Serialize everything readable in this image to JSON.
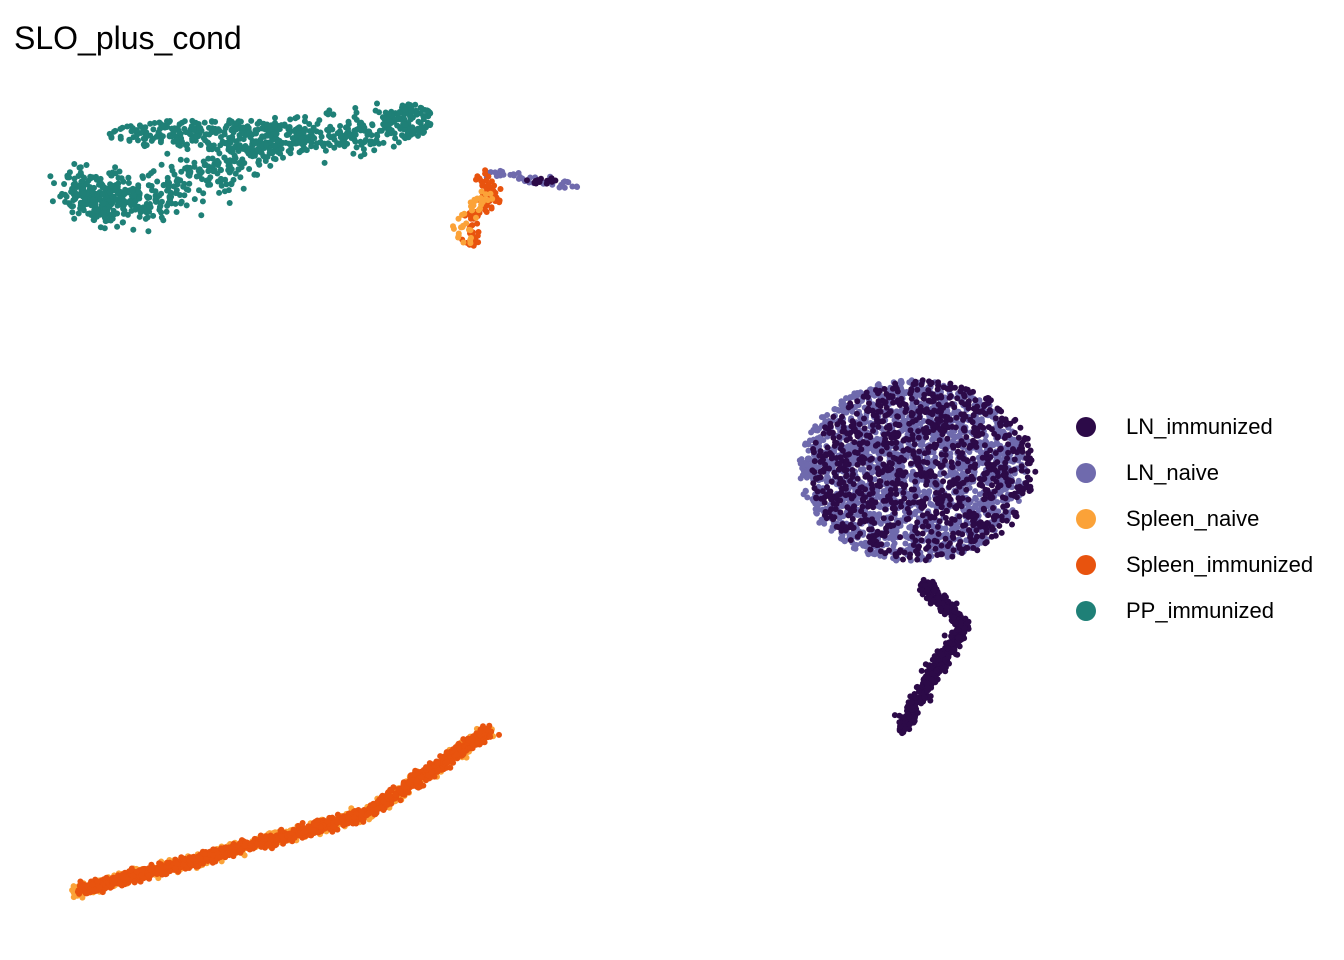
{
  "chart_data": {
    "type": "scatter",
    "title": "SLO_plus_cond",
    "xlabel": "",
    "ylabel": "",
    "axes_visible": false,
    "legend_position": "right",
    "series": [
      {
        "name": "LN_immunized",
        "color": "#2c0a48"
      },
      {
        "name": "LN_naive",
        "color": "#6f6aad"
      },
      {
        "name": "Spleen_naive",
        "color": "#fba238"
      },
      {
        "name": "Spleen_immunized",
        "color": "#e8530e"
      },
      {
        "name": "PP_immunized",
        "color": "#1f8077"
      }
    ],
    "clusters": [
      {
        "series": "PP_immunized",
        "shape": "arc",
        "path": [
          [
            0.1,
            0.7
          ],
          [
            0.2,
            0.6
          ],
          [
            0.5,
            0.5
          ],
          [
            1.2,
            0.9
          ],
          [
            2.0,
            1.4
          ],
          [
            3.0,
            1.6
          ]
        ],
        "count": 700
      },
      {
        "series": "PP_immunized",
        "shape": "blob",
        "cx": 1.3,
        "cy": 1.5,
        "rx": 1.0,
        "ry": 0.22,
        "count": 300
      },
      {
        "series": "PP_immunized",
        "shape": "blob",
        "cx": 3.2,
        "cy": 1.7,
        "rx": 0.25,
        "ry": 0.25,
        "count": 120
      },
      {
        "series": "LN_naive",
        "shape": "arc",
        "path": [
          [
            3.9,
            1.0
          ],
          [
            4.4,
            0.85
          ],
          [
            4.8,
            0.8
          ]
        ],
        "count": 40
      },
      {
        "series": "LN_immunized",
        "shape": "blob",
        "cx": 4.5,
        "cy": 0.85,
        "rx": 0.15,
        "ry": 0.05,
        "count": 15
      },
      {
        "series": "Spleen_immunized",
        "shape": "arc",
        "path": [
          [
            3.9,
            0.95
          ],
          [
            4.05,
            0.6
          ],
          [
            3.8,
            0.3
          ],
          [
            3.85,
            -0.1
          ]
        ],
        "count": 80
      },
      {
        "series": "Spleen_naive",
        "shape": "arc",
        "path": [
          [
            4.0,
            0.7
          ],
          [
            3.7,
            0.25
          ],
          [
            3.8,
            -0.05
          ]
        ],
        "count": 40
      },
      {
        "series": "LN_naive",
        "shape": "blob",
        "cx": 8.1,
        "cy": -3.3,
        "rx": 1.1,
        "ry": 1.3,
        "count": 1800
      },
      {
        "series": "LN_immunized",
        "shape": "blob",
        "cx": 8.2,
        "cy": -3.3,
        "rx": 1.1,
        "ry": 1.3,
        "count": 1000
      },
      {
        "series": "LN_immunized",
        "shape": "arc",
        "path": [
          [
            8.2,
            -4.9
          ],
          [
            8.6,
            -5.5
          ],
          [
            8.3,
            -6.2
          ],
          [
            8.0,
            -7.0
          ]
        ],
        "count": 520
      },
      {
        "series": "Spleen_naive",
        "shape": "arc",
        "path": [
          [
            0.0,
            -9.3
          ],
          [
            1.3,
            -8.8
          ],
          [
            2.8,
            -8.2
          ],
          [
            4.0,
            -7.0
          ]
        ],
        "count": 900
      },
      {
        "series": "Spleen_immunized",
        "shape": "arc",
        "path": [
          [
            0.0,
            -9.3
          ],
          [
            1.3,
            -8.8
          ],
          [
            2.8,
            -8.2
          ],
          [
            4.0,
            -7.0
          ]
        ],
        "count": 1300
      }
    ]
  }
}
